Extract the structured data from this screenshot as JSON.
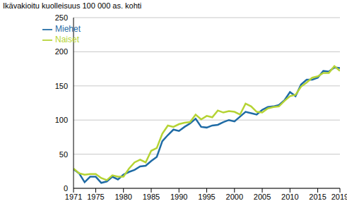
{
  "chart_data": {
    "type": "line",
    "title": "Ikävakioitu kuolleisuus 100 000 as. kohti",
    "x": [
      1971,
      1972,
      1973,
      1974,
      1975,
      1976,
      1977,
      1978,
      1979,
      1980,
      1981,
      1982,
      1983,
      1984,
      1985,
      1986,
      1987,
      1988,
      1989,
      1990,
      1991,
      1992,
      1993,
      1994,
      1995,
      1996,
      1997,
      1998,
      1999,
      2000,
      2001,
      2002,
      2003,
      2004,
      2005,
      2006,
      2007,
      2008,
      2009,
      2010,
      2011,
      2012,
      2013,
      2014,
      2015,
      2016,
      2017,
      2018,
      2019
    ],
    "series": [
      {
        "name": "Miehet",
        "color": "#1f6ba5",
        "values": [
          28,
          22,
          9,
          17,
          17,
          8,
          10,
          17,
          13,
          20,
          24,
          27,
          32,
          33,
          40,
          46,
          69,
          78,
          86,
          84,
          90,
          95,
          102,
          90,
          89,
          92,
          93,
          97,
          100,
          98,
          105,
          112,
          110,
          108,
          115,
          119,
          120,
          122,
          129,
          141,
          135,
          152,
          159,
          159,
          162,
          172,
          171,
          177,
          176
        ]
      },
      {
        "name": "Naiset",
        "color": "#b5d334",
        "values": [
          29,
          22,
          20,
          21,
          21,
          15,
          12,
          19,
          17,
          17,
          29,
          38,
          42,
          38,
          55,
          59,
          80,
          92,
          90,
          94,
          96,
          97,
          108,
          101,
          106,
          104,
          114,
          111,
          113,
          112,
          108,
          124,
          120,
          112,
          111,
          117,
          119,
          120,
          128,
          135,
          137,
          149,
          155,
          162,
          164,
          169,
          169,
          179,
          172
        ]
      }
    ],
    "xlim": [
      1971,
      2019
    ],
    "xticks": [
      1971,
      1975,
      1980,
      1985,
      1990,
      1995,
      2000,
      2005,
      2010,
      2015,
      2019
    ],
    "ylim": [
      0,
      250
    ],
    "yticks": [
      0,
      50,
      100,
      150,
      200,
      250
    ],
    "grid": true,
    "legend": "top-left"
  }
}
